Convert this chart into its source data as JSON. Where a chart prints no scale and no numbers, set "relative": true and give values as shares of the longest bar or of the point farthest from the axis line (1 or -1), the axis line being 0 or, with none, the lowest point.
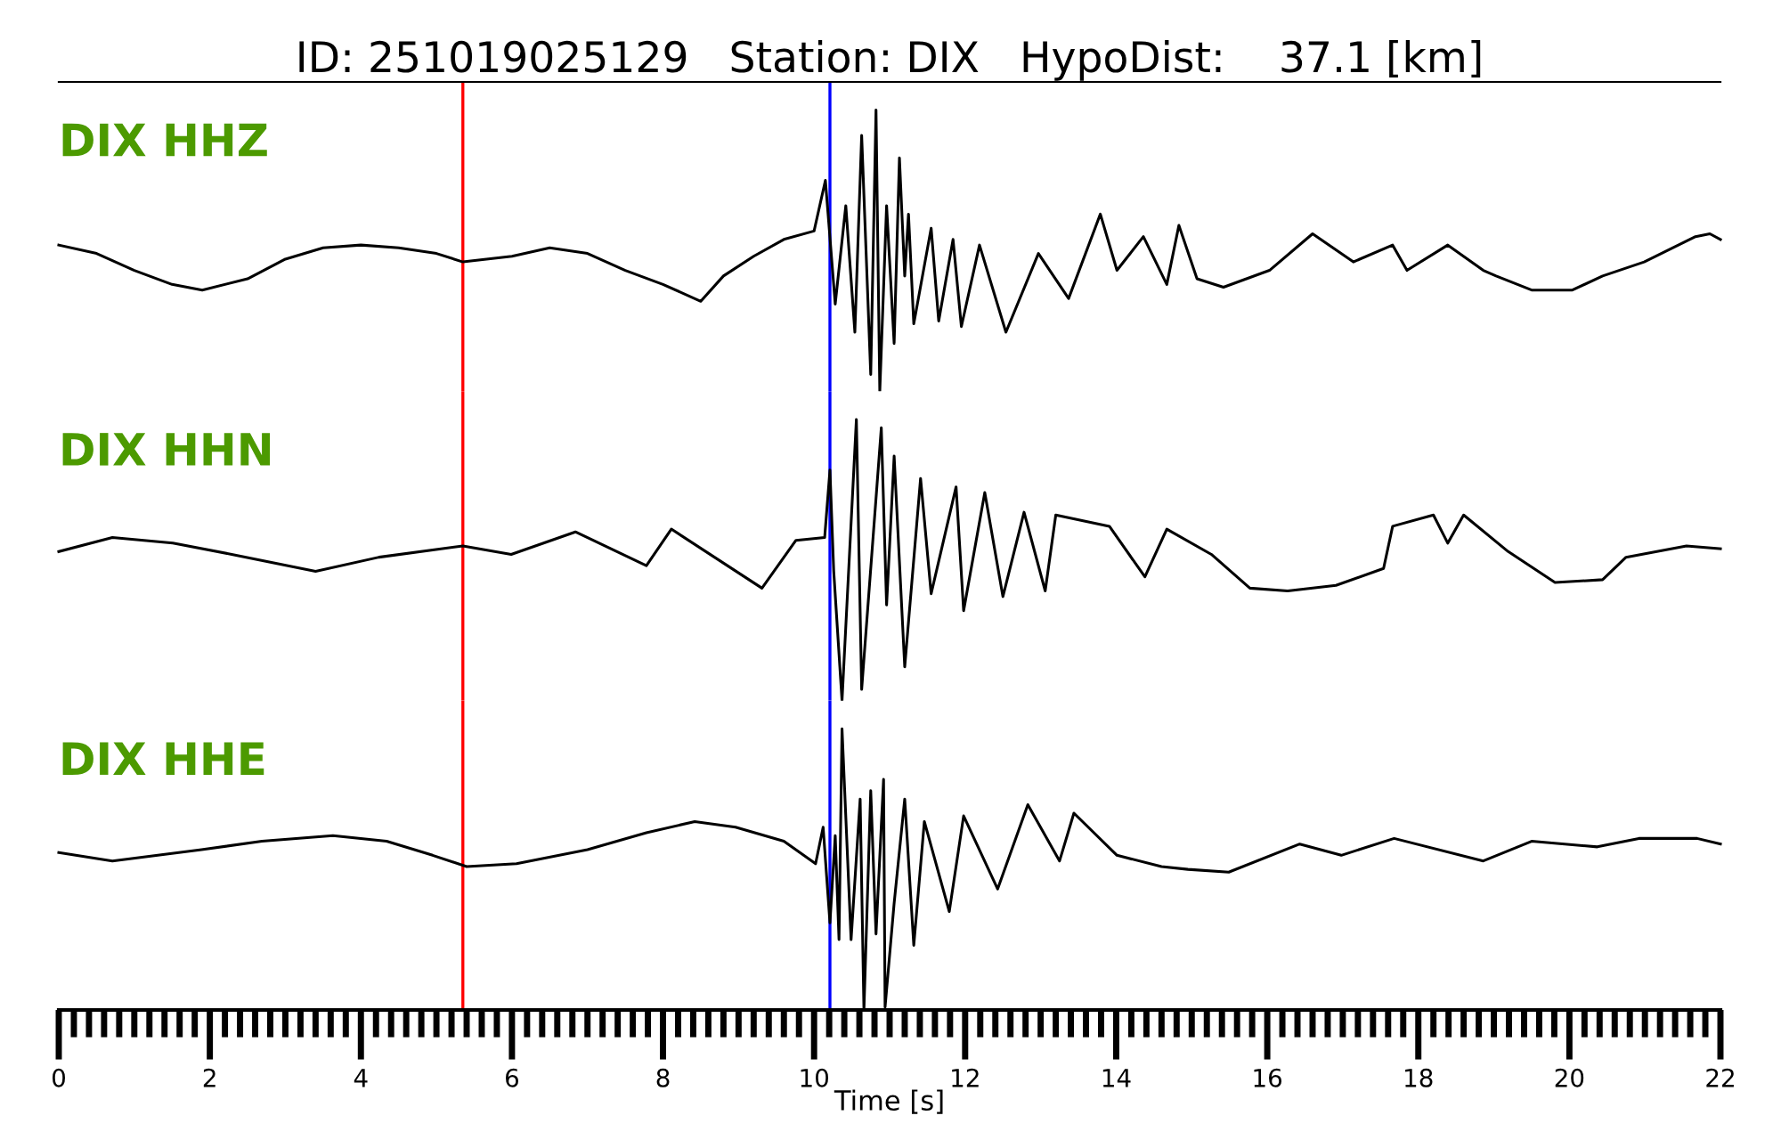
{
  "chart_data": [
    {
      "type": "line",
      "title": "ID: 251019025129   Station: DIX   HypoDist:    37.1 [km]",
      "annotations": [
        "DIX HHZ"
      ],
      "relative": true,
      "xlim": [
        0,
        22
      ],
      "tick_labels": false,
      "x": [
        0,
        0.5,
        1.0,
        1.5,
        1.9,
        2.5,
        3.0,
        3.5,
        4.0,
        4.5,
        5.0,
        5.35,
        6.0,
        6.5,
        7.0,
        7.5,
        8.0,
        8.5,
        8.8,
        9.2,
        9.6,
        10.0,
        10.15,
        10.28,
        10.42,
        10.54,
        10.63,
        10.75,
        10.82,
        10.87,
        10.96,
        11.06,
        11.13,
        11.2,
        11.25,
        11.32,
        11.55,
        11.65,
        11.84,
        11.95,
        12.19,
        12.54,
        12.97,
        13.37,
        13.79,
        14.01,
        14.36,
        14.67,
        14.83,
        15.07,
        15.42,
        16.03,
        16.6,
        17.14,
        17.66,
        17.85,
        18.39,
        18.86,
        19.03,
        19.5,
        20.04,
        20.44,
        20.99,
        21.67,
        21.86,
        22.0
      ],
      "series": [
        {
          "color": "#000000",
          "values": [
            0.52,
            0.49,
            0.43,
            0.38,
            0.36,
            0.4,
            0.47,
            0.51,
            0.52,
            0.51,
            0.49,
            0.46,
            0.48,
            0.51,
            0.49,
            0.43,
            0.38,
            0.32,
            0.41,
            0.48,
            0.54,
            0.57,
            0.75,
            0.31,
            0.66,
            0.21,
            0.91,
            0.06,
            1,
            0,
            0.66,
            0.17,
            0.83,
            0.41,
            0.63,
            0.24,
            0.58,
            0.25,
            0.54,
            0.23,
            0.52,
            0.21,
            0.49,
            0.33,
            0.63,
            0.43,
            0.55,
            0.38,
            0.59,
            0.4,
            0.37,
            0.43,
            0.56,
            0.46,
            0.52,
            0.43,
            0.52,
            0.43,
            0.41,
            0.36,
            0.36,
            0.41,
            0.46,
            0.55,
            0.56,
            0.54
          ]
        }
      ],
      "ref_lines": [
        {
          "axis": "x",
          "value": 5.35,
          "color": "#ff0000"
        },
        {
          "axis": "x",
          "value": 10.21,
          "color": "#0000ff"
        }
      ]
    },
    {
      "type": "line",
      "annotations": [
        "DIX HHN"
      ],
      "relative": true,
      "xlim": [
        0,
        22
      ],
      "tick_labels": false,
      "x": [
        0,
        0.71,
        1.51,
        2.29,
        3.4,
        4.24,
        5.35,
        5.99,
        6.84,
        7.78,
        8.11,
        9.31,
        9.76,
        10.14,
        10.21,
        10.26,
        10.37,
        10.56,
        10.63,
        10.89,
        10.96,
        11.06,
        11.2,
        11.41,
        11.55,
        11.88,
        11.98,
        12.26,
        12.5,
        12.78,
        13.06,
        13.2,
        13.91,
        14.38,
        14.67,
        15.26,
        15.77,
        16.27,
        16.91,
        17.54,
        17.66,
        18.2,
        18.39,
        18.6,
        19.19,
        19.81,
        20.44,
        20.75,
        21.55,
        22.0
      ],
      "series": [
        {
          "color": "#000000",
          "values": [
            0.53,
            0.58,
            0.56,
            0.52,
            0.46,
            0.51,
            0.55,
            0.52,
            0.6,
            0.48,
            0.61,
            0.4,
            0.57,
            0.58,
            0.82,
            0.46,
            0,
            1,
            0.04,
            0.97,
            0.34,
            0.87,
            0.12,
            0.79,
            0.38,
            0.76,
            0.32,
            0.74,
            0.37,
            0.67,
            0.39,
            0.66,
            0.62,
            0.44,
            0.61,
            0.52,
            0.4,
            0.39,
            0.41,
            0.47,
            0.62,
            0.66,
            0.56,
            0.66,
            0.53,
            0.42,
            0.43,
            0.51,
            0.55,
            0.54
          ]
        }
      ],
      "ref_lines": [
        {
          "axis": "x",
          "value": 5.35,
          "color": "#ff0000"
        },
        {
          "axis": "x",
          "value": 10.21,
          "color": "#0000ff"
        }
      ]
    },
    {
      "type": "line",
      "annotations": [
        "DIX HHE"
      ],
      "relative": true,
      "xlabel": "Time [s]",
      "xlim": [
        0,
        22
      ],
      "tick_labels": "x",
      "xticks": [
        0,
        {
          "value": 0.2,
          "label": null
        },
        {
          "value": 0.4,
          "label": null
        },
        {
          "value": 0.6,
          "label": null
        },
        {
          "value": 0.8,
          "label": null
        },
        {
          "value": 1,
          "label": null
        },
        {
          "value": 1.2,
          "label": null
        },
        {
          "value": 1.4,
          "label": null
        },
        {
          "value": 1.6,
          "label": null
        },
        {
          "value": 1.8,
          "label": null
        },
        2,
        {
          "value": 2.2,
          "label": null
        },
        {
          "value": 2.4,
          "label": null
        },
        {
          "value": 2.6,
          "label": null
        },
        {
          "value": 2.8,
          "label": null
        },
        {
          "value": 3,
          "label": null
        },
        {
          "value": 3.2,
          "label": null
        },
        {
          "value": 3.4,
          "label": null
        },
        {
          "value": 3.6,
          "label": null
        },
        {
          "value": 3.8,
          "label": null
        },
        4,
        {
          "value": 4.2,
          "label": null
        },
        {
          "value": 4.4,
          "label": null
        },
        {
          "value": 4.6,
          "label": null
        },
        {
          "value": 4.8,
          "label": null
        },
        {
          "value": 5,
          "label": null
        },
        {
          "value": 5.2,
          "label": null
        },
        {
          "value": 5.4,
          "label": null
        },
        {
          "value": 5.6,
          "label": null
        },
        {
          "value": 5.8,
          "label": null
        },
        6,
        {
          "value": 6.2,
          "label": null
        },
        {
          "value": 6.4,
          "label": null
        },
        {
          "value": 6.6,
          "label": null
        },
        {
          "value": 6.8,
          "label": null
        },
        {
          "value": 7,
          "label": null
        },
        {
          "value": 7.2,
          "label": null
        },
        {
          "value": 7.4,
          "label": null
        },
        {
          "value": 7.6,
          "label": null
        },
        {
          "value": 7.8,
          "label": null
        },
        8,
        {
          "value": 8.2,
          "label": null
        },
        {
          "value": 8.4,
          "label": null
        },
        {
          "value": 8.6,
          "label": null
        },
        {
          "value": 8.8,
          "label": null
        },
        {
          "value": 9,
          "label": null
        },
        {
          "value": 9.2,
          "label": null
        },
        {
          "value": 9.4,
          "label": null
        },
        {
          "value": 9.6,
          "label": null
        },
        {
          "value": 9.8,
          "label": null
        },
        10,
        {
          "value": 10.2,
          "label": null
        },
        {
          "value": 10.4,
          "label": null
        },
        {
          "value": 10.6,
          "label": null
        },
        {
          "value": 10.8,
          "label": null
        },
        {
          "value": 11,
          "label": null
        },
        {
          "value": 11.2,
          "label": null
        },
        {
          "value": 11.4,
          "label": null
        },
        {
          "value": 11.6,
          "label": null
        },
        {
          "value": 11.8,
          "label": null
        },
        12,
        {
          "value": 12.2,
          "label": null
        },
        {
          "value": 12.4,
          "label": null
        },
        {
          "value": 12.6,
          "label": null
        },
        {
          "value": 12.8,
          "label": null
        },
        {
          "value": 13,
          "label": null
        },
        {
          "value": 13.2,
          "label": null
        },
        {
          "value": 13.4,
          "label": null
        },
        {
          "value": 13.6,
          "label": null
        },
        {
          "value": 13.8,
          "label": null
        },
        14,
        {
          "value": 14.2,
          "label": null
        },
        {
          "value": 14.4,
          "label": null
        },
        {
          "value": 14.6,
          "label": null
        },
        {
          "value": 14.8,
          "label": null
        },
        {
          "value": 15,
          "label": null
        },
        {
          "value": 15.2,
          "label": null
        },
        {
          "value": 15.4,
          "label": null
        },
        {
          "value": 15.6,
          "label": null
        },
        {
          "value": 15.8,
          "label": null
        },
        16,
        {
          "value": 16.2,
          "label": null
        },
        {
          "value": 16.4,
          "label": null
        },
        {
          "value": 16.6,
          "label": null
        },
        {
          "value": 16.8,
          "label": null
        },
        {
          "value": 17,
          "label": null
        },
        {
          "value": 17.2,
          "label": null
        },
        {
          "value": 17.4,
          "label": null
        },
        {
          "value": 17.6,
          "label": null
        },
        {
          "value": 17.8,
          "label": null
        },
        18,
        {
          "value": 18.2,
          "label": null
        },
        {
          "value": 18.4,
          "label": null
        },
        {
          "value": 18.6,
          "label": null
        },
        {
          "value": 18.8,
          "label": null
        },
        {
          "value": 19,
          "label": null
        },
        {
          "value": 19.2,
          "label": null
        },
        {
          "value": 19.4,
          "label": null
        },
        {
          "value": 19.6,
          "label": null
        },
        {
          "value": 19.8,
          "label": null
        },
        20,
        {
          "value": 20.2,
          "label": null
        },
        {
          "value": 20.4,
          "label": null
        },
        {
          "value": 20.6,
          "label": null
        },
        {
          "value": 20.8,
          "label": null
        },
        {
          "value": 21,
          "label": null
        },
        {
          "value": 21.2,
          "label": null
        },
        {
          "value": 21.4,
          "label": null
        },
        {
          "value": 21.6,
          "label": null
        },
        {
          "value": 21.8,
          "label": null
        },
        22
      ],
      "x": [
        0,
        0.71,
        1.89,
        2.69,
        3.63,
        4.34,
        4.95,
        5.4,
        6.06,
        7.0,
        7.78,
        8.42,
        8.96,
        9.6,
        10.02,
        10.12,
        10.21,
        10.28,
        10.33,
        10.37,
        10.49,
        10.61,
        10.66,
        10.75,
        10.82,
        10.92,
        10.94,
        11.06,
        11.2,
        11.32,
        11.46,
        11.79,
        11.98,
        12.43,
        12.83,
        13.25,
        13.44,
        14.01,
        14.6,
        14.95,
        15.49,
        16.43,
        16.98,
        17.68,
        18.86,
        19.5,
        20.37,
        20.92,
        21.69,
        22.0
      ],
      "series": [
        {
          "color": "#000000",
          "values": [
            0.56,
            0.53,
            0.57,
            0.6,
            0.62,
            0.6,
            0.55,
            0.51,
            0.52,
            0.57,
            0.63,
            0.67,
            0.65,
            0.6,
            0.52,
            0.65,
            0.31,
            0.62,
            0.25,
            1,
            0.25,
            0.75,
            0,
            0.78,
            0.27,
            0.82,
            0.01,
            0.38,
            0.75,
            0.23,
            0.67,
            0.35,
            0.69,
            0.43,
            0.73,
            0.53,
            0.7,
            0.55,
            0.51,
            0.5,
            0.49,
            0.59,
            0.55,
            0.61,
            0.53,
            0.6,
            0.58,
            0.61,
            0.61,
            0.59
          ]
        }
      ],
      "ref_lines": [
        {
          "axis": "x",
          "value": 5.35,
          "color": "#ff0000"
        },
        {
          "axis": "x",
          "value": 10.21,
          "color": "#0000ff"
        }
      ]
    }
  ]
}
